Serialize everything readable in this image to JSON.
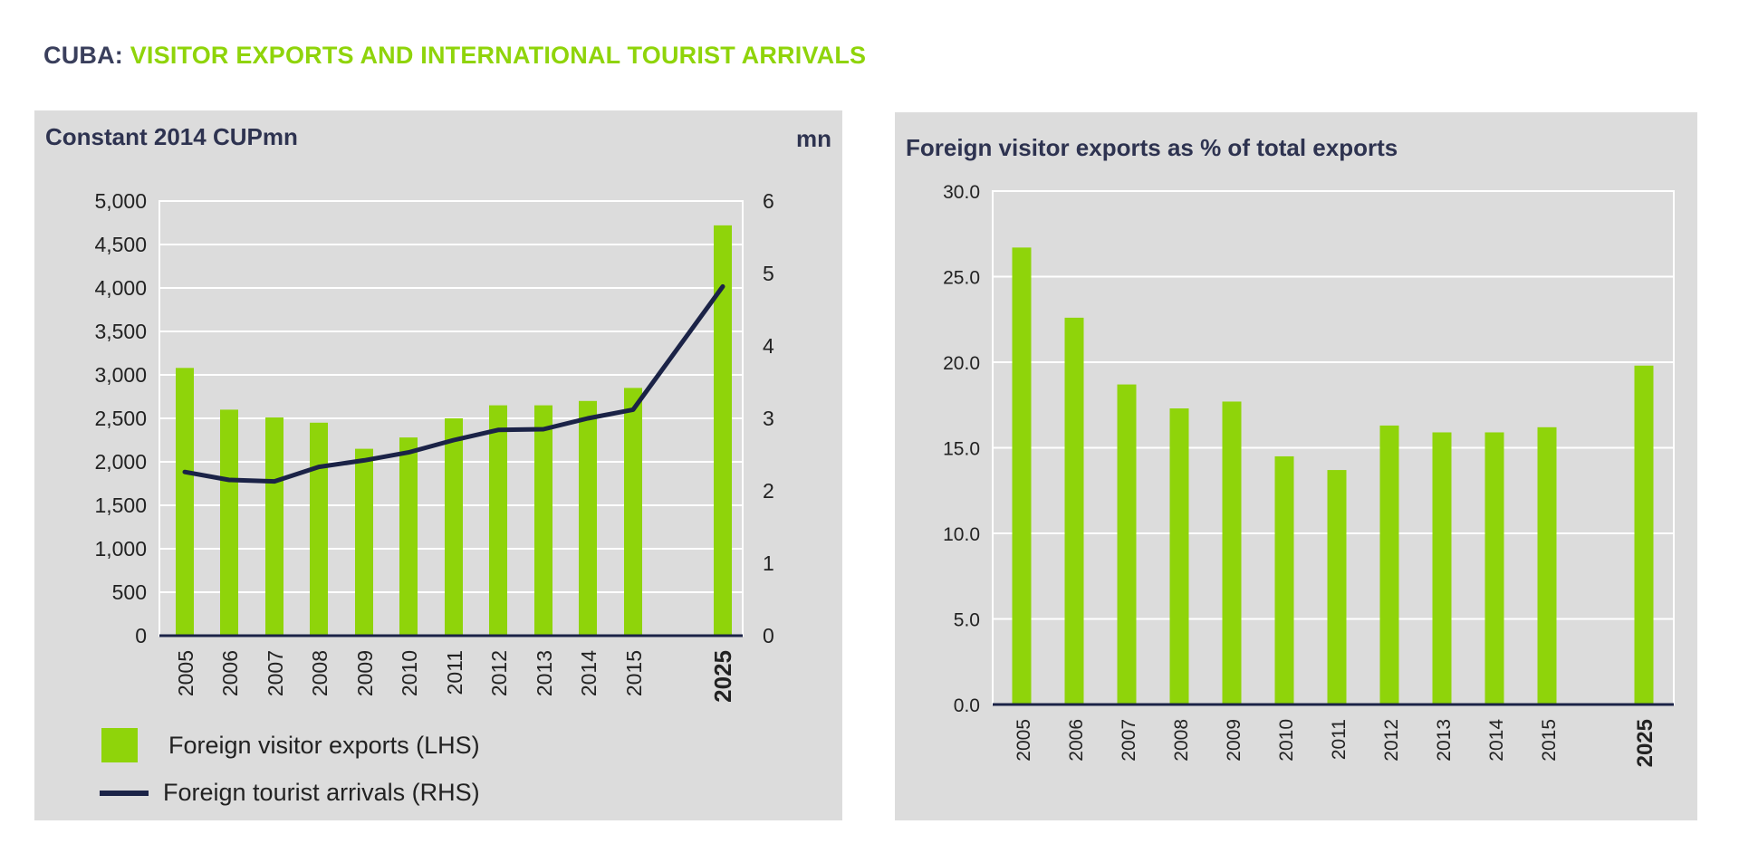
{
  "page": {
    "title_prefix": "CUBA:",
    "title_main": "VISITOR EXPORTS AND INTERNATIONAL TOURIST ARRIVALS",
    "colors": {
      "bar": "#8fd40a",
      "line": "#1b2347",
      "panel": "#dcdcdc",
      "title_dark": "#3a3f5c"
    }
  },
  "chart_data": [
    {
      "type": "bar",
      "title": "Constant 2014 CUPmn",
      "ylabel_right": "mn",
      "categories": [
        "2005",
        "2006",
        "2007",
        "2008",
        "2009",
        "2010",
        "2011",
        "2012",
        "2013",
        "2014",
        "2015",
        "2025"
      ],
      "emphasized_category": "2025",
      "ylim": [
        0,
        5000
      ],
      "yticks": [
        "0",
        "500",
        "1,000",
        "1,500",
        "2,000",
        "2,500",
        "3,000",
        "3,500",
        "4,000",
        "4,500",
        "5,000"
      ],
      "y2lim": [
        0,
        6
      ],
      "y2ticks": [
        "0",
        "1",
        "2",
        "3",
        "4",
        "5",
        "6"
      ],
      "grid": true,
      "legend_position": "bottom",
      "series": [
        {
          "name": "Foreign visitor exports (LHS)",
          "type": "bar",
          "axis": "left",
          "values": [
            3080,
            2600,
            2510,
            2450,
            2150,
            2280,
            2500,
            2650,
            2650,
            2700,
            2850,
            4720
          ]
        },
        {
          "name": "Foreign tourist arrivals (RHS)",
          "type": "line",
          "axis": "right",
          "values": [
            2.26,
            2.15,
            2.13,
            2.33,
            2.42,
            2.53,
            2.7,
            2.84,
            2.85,
            3.0,
            3.12,
            4.82
          ]
        }
      ]
    },
    {
      "type": "bar",
      "title": "Foreign visitor exports as % of total exports",
      "categories": [
        "2005",
        "2006",
        "2007",
        "2008",
        "2009",
        "2010",
        "2011",
        "2012",
        "2013",
        "2014",
        "2015",
        "2025"
      ],
      "emphasized_category": "2025",
      "ylim": [
        0,
        30
      ],
      "yticks": [
        "0.0",
        "5.0",
        "10.0",
        "15.0",
        "20.0",
        "25.0",
        "30.0"
      ],
      "grid": true,
      "series": [
        {
          "type": "bar",
          "values": [
            26.7,
            22.6,
            18.7,
            17.3,
            17.7,
            14.5,
            13.7,
            16.3,
            15.9,
            15.9,
            16.2,
            19.8
          ]
        }
      ]
    }
  ]
}
